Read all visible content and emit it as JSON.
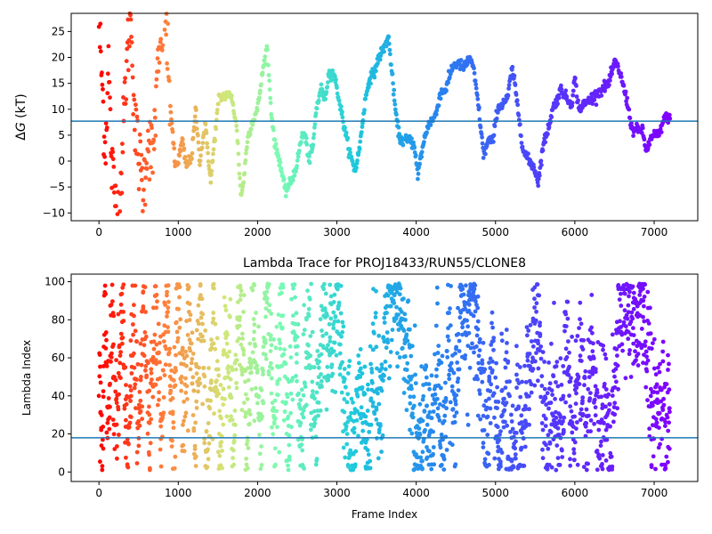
{
  "chart_data": [
    {
      "type": "scatter",
      "title": "",
      "xlabel": "",
      "ylabel": "ΔG (kT)",
      "ylabel_italic": "G",
      "xlim": [
        -350,
        7550
      ],
      "ylim": [
        -11.5,
        28.5
      ],
      "xticks": [
        0,
        1000,
        2000,
        3000,
        4000,
        5000,
        6000,
        7000
      ],
      "yticks": [
        -10,
        -5,
        0,
        5,
        10,
        15,
        20,
        25
      ],
      "hline": 7.7,
      "hline_color": "#1f77b4",
      "colormap": "rainbow",
      "x_max": 7200,
      "grid": false,
      "trace_keypoints": [
        [
          0,
          27
        ],
        [
          40,
          15
        ],
        [
          80,
          2
        ],
        [
          120,
          19
        ],
        [
          160,
          -1
        ],
        [
          200,
          -6
        ],
        [
          250,
          -11
        ],
        [
          300,
          3
        ],
        [
          330,
          14
        ],
        [
          380,
          25
        ],
        [
          410,
          27
        ],
        [
          450,
          7
        ],
        [
          500,
          1
        ],
        [
          560,
          -5
        ],
        [
          620,
          5
        ],
        [
          680,
          0
        ],
        [
          720,
          12
        ],
        [
          790,
          25
        ],
        [
          840,
          29
        ],
        [
          880,
          14
        ],
        [
          910,
          9
        ],
        [
          960,
          -1
        ],
        [
          1000,
          0
        ],
        [
          1050,
          4
        ],
        [
          1100,
          -1
        ],
        [
          1170,
          1
        ],
        [
          1220,
          10
        ],
        [
          1270,
          0
        ],
        [
          1340,
          7
        ],
        [
          1410,
          -4
        ],
        [
          1450,
          3
        ],
        [
          1510,
          12
        ],
        [
          1570,
          12.5
        ],
        [
          1620,
          13
        ],
        [
          1680,
          12
        ],
        [
          1740,
          6
        ],
        [
          1790,
          -7
        ],
        [
          1830,
          -3
        ],
        [
          1870,
          4
        ],
        [
          1920,
          7
        ],
        [
          2000,
          10
        ],
        [
          2070,
          18
        ],
        [
          2120,
          22
        ],
        [
          2170,
          10
        ],
        [
          2220,
          3
        ],
        [
          2280,
          0
        ],
        [
          2350,
          -6
        ],
        [
          2420,
          -4
        ],
        [
          2490,
          -1
        ],
        [
          2560,
          5
        ],
        [
          2600,
          5
        ],
        [
          2650,
          0
        ],
        [
          2700,
          3
        ],
        [
          2740,
          10
        ],
        [
          2800,
          14
        ],
        [
          2850,
          12
        ],
        [
          2900,
          17
        ],
        [
          2960,
          17
        ],
        [
          3000,
          14
        ],
        [
          3050,
          10
        ],
        [
          3100,
          6
        ],
        [
          3170,
          1
        ],
        [
          3230,
          -2
        ],
        [
          3290,
          3
        ],
        [
          3350,
          11
        ],
        [
          3410,
          16
        ],
        [
          3470,
          17
        ],
        [
          3530,
          20
        ],
        [
          3600,
          22
        ],
        [
          3650,
          24
        ],
        [
          3700,
          16
        ],
        [
          3750,
          8
        ],
        [
          3800,
          4
        ],
        [
          3850,
          4
        ],
        [
          3920,
          4
        ],
        [
          3980,
          3
        ],
        [
          4020,
          -3
        ],
        [
          4060,
          1
        ],
        [
          4100,
          4
        ],
        [
          4150,
          7
        ],
        [
          4210,
          8
        ],
        [
          4250,
          9
        ],
        [
          4300,
          13
        ],
        [
          4380,
          14
        ],
        [
          4450,
          18
        ],
        [
          4520,
          19
        ],
        [
          4600,
          18
        ],
        [
          4680,
          20
        ],
        [
          4730,
          17
        ],
        [
          4790,
          10
        ],
        [
          4850,
          1
        ],
        [
          4910,
          4
        ],
        [
          4970,
          4
        ],
        [
          5020,
          10
        ],
        [
          5080,
          11
        ],
        [
          5150,
          12
        ],
        [
          5210,
          18
        ],
        [
          5250,
          14
        ],
        [
          5300,
          8
        ],
        [
          5350,
          2
        ],
        [
          5420,
          0
        ],
        [
          5480,
          -1
        ],
        [
          5540,
          -4
        ],
        [
          5600,
          3
        ],
        [
          5660,
          6
        ],
        [
          5720,
          10
        ],
        [
          5780,
          12
        ],
        [
          5830,
          14
        ],
        [
          5900,
          12
        ],
        [
          5960,
          11
        ],
        [
          6000,
          16
        ],
        [
          6050,
          10
        ],
        [
          6120,
          11
        ],
        [
          6200,
          12
        ],
        [
          6280,
          13
        ],
        [
          6350,
          14
        ],
        [
          6430,
          15
        ],
        [
          6500,
          19
        ],
        [
          6550,
          18
        ],
        [
          6620,
          14
        ],
        [
          6680,
          10
        ],
        [
          6720,
          6
        ],
        [
          6780,
          6
        ],
        [
          6850,
          6
        ],
        [
          6900,
          2
        ],
        [
          6950,
          4
        ],
        [
          7000,
          5
        ],
        [
          7060,
          5
        ],
        [
          7120,
          8
        ],
        [
          7180,
          8.5
        ]
      ]
    },
    {
      "type": "scatter",
      "title": "Lambda Trace for PROJ18433/RUN55/CLONE8",
      "xlabel": "Frame Index",
      "ylabel": "Lambda Index",
      "xlim": [
        -350,
        7550
      ],
      "ylim": [
        -5,
        104
      ],
      "xticks": [
        0,
        1000,
        2000,
        3000,
        4000,
        5000,
        6000,
        7000
      ],
      "yticks": [
        0,
        20,
        40,
        60,
        80,
        100
      ],
      "hline": 18,
      "hline_color": "#1f77b4",
      "colormap": "rainbow",
      "x_max": 7200,
      "grid": false,
      "sweep_keypoints": [
        [
          0,
          50
        ],
        [
          40,
          10
        ],
        [
          80,
          90
        ],
        [
          120,
          20
        ],
        [
          160,
          85
        ],
        [
          220,
          15
        ],
        [
          290,
          90
        ],
        [
          360,
          10
        ],
        [
          430,
          80
        ],
        [
          500,
          15
        ],
        [
          570,
          95
        ],
        [
          640,
          20
        ],
        [
          720,
          90
        ],
        [
          790,
          10
        ],
        [
          860,
          95
        ],
        [
          930,
          15
        ],
        [
          1000,
          90
        ],
        [
          1070,
          20
        ],
        [
          1140,
          95
        ],
        [
          1210,
          10
        ],
        [
          1280,
          90
        ],
        [
          1360,
          15
        ],
        [
          1440,
          85
        ],
        [
          1520,
          15
        ],
        [
          1610,
          75
        ],
        [
          1690,
          20
        ],
        [
          1780,
          95
        ],
        [
          1870,
          15
        ],
        [
          1950,
          85
        ],
        [
          2030,
          15
        ],
        [
          2120,
          95
        ],
        [
          2210,
          25
        ],
        [
          2300,
          90
        ],
        [
          2380,
          15
        ],
        [
          2460,
          85
        ],
        [
          2550,
          15
        ],
        [
          2640,
          70
        ],
        [
          2730,
          15
        ],
        [
          2830,
          80
        ],
        [
          2920,
          60
        ],
        [
          3010,
          92
        ],
        [
          3100,
          35
        ],
        [
          3200,
          10
        ],
        [
          3290,
          45
        ],
        [
          3380,
          15
        ],
        [
          3460,
          65
        ],
        [
          3540,
          30
        ],
        [
          3620,
          80
        ],
        [
          3700,
          95
        ],
        [
          3780,
          85
        ],
        [
          3850,
          75
        ],
        [
          3910,
          55
        ],
        [
          3980,
          25
        ],
        [
          4050,
          10
        ],
        [
          4120,
          35
        ],
        [
          4190,
          15
        ],
        [
          4260,
          55
        ],
        [
          4330,
          15
        ],
        [
          4410,
          65
        ],
        [
          4480,
          30
        ],
        [
          4560,
          90
        ],
        [
          4640,
          75
        ],
        [
          4720,
          95
        ],
        [
          4800,
          55
        ],
        [
          4880,
          15
        ],
        [
          4960,
          55
        ],
        [
          5040,
          10
        ],
        [
          5120,
          45
        ],
        [
          5200,
          10
        ],
        [
          5280,
          30
        ],
        [
          5360,
          15
        ],
        [
          5440,
          55
        ],
        [
          5520,
          90
        ],
        [
          5590,
          45
        ],
        [
          5660,
          10
        ],
        [
          5740,
          45
        ],
        [
          5820,
          15
        ],
        [
          5900,
          70
        ],
        [
          5980,
          15
        ],
        [
          6060,
          60
        ],
        [
          6140,
          20
        ],
        [
          6220,
          55
        ],
        [
          6300,
          15
        ],
        [
          6380,
          45
        ],
        [
          6440,
          10
        ],
        [
          6520,
          60
        ],
        [
          6600,
          85
        ],
        [
          6680,
          95
        ],
        [
          6760,
          70
        ],
        [
          6840,
          95
        ],
        [
          6920,
          60
        ],
        [
          7000,
          25
        ],
        [
          7080,
          40
        ],
        [
          7150,
          20
        ],
        [
          7180,
          35
        ]
      ]
    }
  ]
}
